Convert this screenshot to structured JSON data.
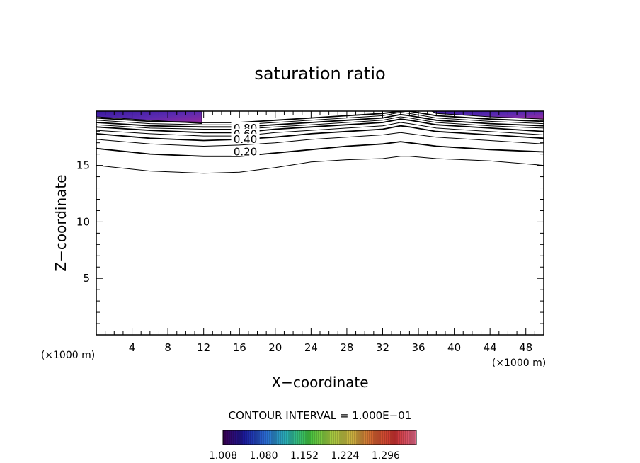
{
  "chart_data": {
    "type": "contour",
    "title": "saturation ratio",
    "xlabel": "X−coordinate",
    "ylabel": "Z−coordinate",
    "x_unit_label": "(×1000 m)",
    "y_unit_label": "(×1000 m)",
    "xlim": [
      0,
      50
    ],
    "ylim": [
      0,
      19.8
    ],
    "x_ticks": [
      4,
      8,
      12,
      16,
      20,
      24,
      28,
      32,
      36,
      40,
      44,
      48
    ],
    "x_tick_labels": [
      "4",
      "8",
      "12",
      "16",
      "20",
      "24",
      "28",
      "32",
      "36",
      "40",
      "44",
      "48"
    ],
    "y_ticks": [
      5,
      10,
      15
    ],
    "y_tick_labels": [
      "5",
      "10",
      "15"
    ],
    "contour_interval_text": "CONTOUR INTERVAL = 1.000E−01",
    "contour_labels": [
      {
        "text": "0.80",
        "x": 16.5,
        "z": 18.3
      },
      {
        "text": "0.60",
        "x": 16.5,
        "z": 17.75
      },
      {
        "text": "0.40",
        "x": 16.5,
        "z": 17.3
      },
      {
        "text": "0.20",
        "x": 16.5,
        "z": 16.2
      }
    ],
    "contour_lines": [
      {
        "level": 0.1,
        "points": [
          [
            0,
            15.0
          ],
          [
            6,
            14.5
          ],
          [
            12,
            14.3
          ],
          [
            16,
            14.4
          ],
          [
            20,
            14.8
          ],
          [
            24,
            15.3
          ],
          [
            28,
            15.5
          ],
          [
            32,
            15.6
          ],
          [
            34,
            15.8
          ],
          [
            35,
            15.8
          ],
          [
            38,
            15.6
          ],
          [
            44,
            15.4
          ],
          [
            50,
            15.0
          ]
        ]
      },
      {
        "level": 0.2,
        "points": [
          [
            0,
            16.5
          ],
          [
            6,
            16.0
          ],
          [
            12,
            15.8
          ],
          [
            16,
            15.8
          ],
          [
            20,
            16.1
          ],
          [
            24,
            16.4
          ],
          [
            28,
            16.7
          ],
          [
            32,
            16.9
          ],
          [
            34,
            17.1
          ],
          [
            35,
            17.0
          ],
          [
            38,
            16.7
          ],
          [
            44,
            16.4
          ],
          [
            50,
            16.2
          ]
        ]
      },
      {
        "level": 0.3,
        "points": [
          [
            0,
            17.3
          ],
          [
            6,
            16.9
          ],
          [
            12,
            16.7
          ],
          [
            16,
            16.8
          ],
          [
            20,
            17.0
          ],
          [
            24,
            17.3
          ],
          [
            28,
            17.5
          ],
          [
            32,
            17.7
          ],
          [
            34,
            17.9
          ],
          [
            35,
            17.8
          ],
          [
            38,
            17.5
          ],
          [
            44,
            17.2
          ],
          [
            50,
            16.9
          ]
        ]
      },
      {
        "level": 0.4,
        "points": [
          [
            0,
            17.8
          ],
          [
            6,
            17.4
          ],
          [
            12,
            17.2
          ],
          [
            16,
            17.3
          ],
          [
            20,
            17.5
          ],
          [
            24,
            17.8
          ],
          [
            28,
            18.0
          ],
          [
            32,
            18.2
          ],
          [
            34,
            18.5
          ],
          [
            35,
            18.4
          ],
          [
            38,
            18.0
          ],
          [
            44,
            17.7
          ],
          [
            50,
            17.4
          ]
        ]
      },
      {
        "level": 0.5,
        "points": [
          [
            0,
            18.1
          ],
          [
            6,
            17.8
          ],
          [
            12,
            17.6
          ],
          [
            16,
            17.6
          ],
          [
            20,
            17.9
          ],
          [
            24,
            18.1
          ],
          [
            28,
            18.3
          ],
          [
            32,
            18.5
          ],
          [
            34,
            18.8
          ],
          [
            35,
            18.7
          ],
          [
            38,
            18.3
          ],
          [
            44,
            18.0
          ],
          [
            50,
            17.7
          ]
        ]
      },
      {
        "level": 0.6,
        "points": [
          [
            0,
            18.4
          ],
          [
            6,
            18.1
          ],
          [
            12,
            17.9
          ],
          [
            16,
            17.9
          ],
          [
            20,
            18.2
          ],
          [
            24,
            18.4
          ],
          [
            28,
            18.6
          ],
          [
            32,
            18.8
          ],
          [
            34,
            19.1
          ],
          [
            35,
            19.0
          ],
          [
            38,
            18.6
          ],
          [
            44,
            18.3
          ],
          [
            50,
            18.0
          ]
        ]
      },
      {
        "level": 0.7,
        "points": [
          [
            0,
            18.6
          ],
          [
            6,
            18.3
          ],
          [
            12,
            18.2
          ],
          [
            16,
            18.2
          ],
          [
            20,
            18.4
          ],
          [
            24,
            18.6
          ],
          [
            28,
            18.8
          ],
          [
            32,
            19.0
          ],
          [
            34,
            19.3
          ],
          [
            35,
            19.2
          ],
          [
            38,
            18.8
          ],
          [
            44,
            18.5
          ],
          [
            50,
            18.3
          ]
        ]
      },
      {
        "level": 0.8,
        "points": [
          [
            0,
            18.8
          ],
          [
            6,
            18.5
          ],
          [
            12,
            18.4
          ],
          [
            16,
            18.4
          ],
          [
            20,
            18.6
          ],
          [
            24,
            18.8
          ],
          [
            28,
            19.0
          ],
          [
            32,
            19.2
          ],
          [
            34,
            19.5
          ],
          [
            35,
            19.4
          ],
          [
            38,
            19.0
          ],
          [
            44,
            18.7
          ],
          [
            50,
            18.5
          ]
        ]
      },
      {
        "level": 0.9,
        "points": [
          [
            0,
            19.0
          ],
          [
            6,
            18.7
          ],
          [
            12,
            18.6
          ],
          [
            16,
            18.6
          ],
          [
            20,
            18.8
          ],
          [
            24,
            19.0
          ],
          [
            28,
            19.2
          ],
          [
            32,
            19.4
          ],
          [
            34,
            19.7
          ],
          [
            35,
            19.6
          ],
          [
            38,
            19.2
          ],
          [
            44,
            18.9
          ],
          [
            50,
            18.7
          ]
        ]
      },
      {
        "level": 1.0,
        "points": [
          [
            0,
            19.2
          ],
          [
            6,
            18.9
          ],
          [
            12,
            18.8
          ],
          [
            16,
            18.8
          ],
          [
            20,
            19.0
          ],
          [
            24,
            19.2
          ],
          [
            28,
            19.4
          ],
          [
            32,
            19.6
          ],
          [
            34,
            19.8
          ],
          [
            35,
            19.8
          ],
          [
            38,
            19.4
          ],
          [
            44,
            19.1
          ],
          [
            50,
            18.9
          ]
        ]
      }
    ],
    "filled_regions": [
      {
        "points": [
          [
            0,
            19.8
          ],
          [
            11.8,
            19.8
          ],
          [
            11.8,
            18.7
          ],
          [
            8,
            18.9
          ],
          [
            4,
            19.1
          ],
          [
            0,
            19.3
          ]
        ]
      },
      {
        "points": [
          [
            37.5,
            19.8
          ],
          [
            50,
            19.8
          ],
          [
            50,
            19.1
          ],
          [
            44,
            19.3
          ],
          [
            40,
            19.5
          ],
          [
            38,
            19.6
          ]
        ]
      }
    ],
    "colorbar": {
      "labels": [
        "1.008",
        "1.080",
        "1.152",
        "1.224",
        "1.296"
      ],
      "min": 1.008,
      "max": 1.35,
      "colors": [
        "#3a0050",
        "#1a1a9a",
        "#2a6ad0",
        "#2ab0b0",
        "#40c040",
        "#a0c840",
        "#c8b040",
        "#d06030",
        "#c83030",
        "#e06a8a"
      ]
    }
  }
}
